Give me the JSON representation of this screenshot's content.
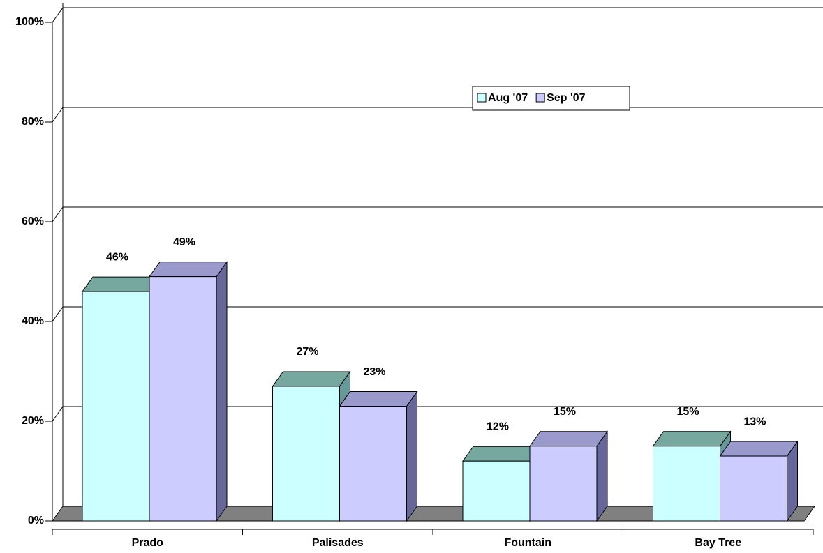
{
  "chart_data": {
    "type": "bar3d",
    "categories": [
      "Prado",
      "Palisades",
      "Fountain",
      "Bay Tree"
    ],
    "series": [
      {
        "name": "Aug '07",
        "color": "#ccffff",
        "top_color": "#77a8a0",
        "side_color": "#669999",
        "values": [
          46,
          27,
          12,
          15
        ],
        "value_labels": [
          "46%",
          "27%",
          "12%",
          "15%"
        ]
      },
      {
        "name": "Sep '07",
        "color": "#ccccff",
        "top_color": "#9999cc",
        "side_color": "#666699",
        "values": [
          49,
          23,
          15,
          13
        ],
        "value_labels": [
          "49%",
          "23%",
          "15%",
          "13%"
        ]
      }
    ],
    "ylim": [
      0,
      100
    ],
    "yticks": [
      {
        "value": 0,
        "label": "0%"
      },
      {
        "value": 20,
        "label": "20%"
      },
      {
        "value": 40,
        "label": "40%"
      },
      {
        "value": 60,
        "label": "60%"
      },
      {
        "value": 80,
        "label": "80%"
      },
      {
        "value": 100,
        "label": "100%"
      }
    ],
    "grid": true
  }
}
